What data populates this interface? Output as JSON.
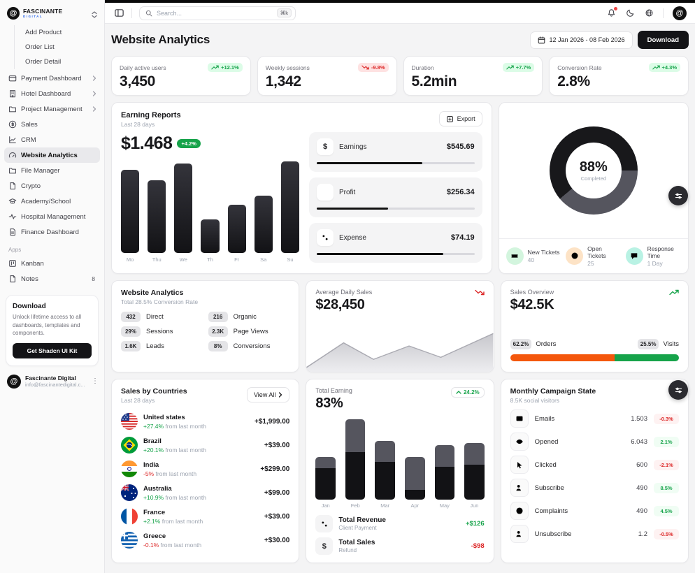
{
  "sidebar": {
    "logo": {
      "brand": "FASCINANTE",
      "sub": "DIGITAL"
    },
    "items": [
      {
        "label": "Add Product",
        "type": "sub"
      },
      {
        "label": "Order List",
        "type": "sub"
      },
      {
        "label": "Order Detail",
        "type": "sub"
      },
      {
        "label": "Payment Dashboard",
        "icon": "wallet",
        "chevron": true
      },
      {
        "label": "Hotel Dashboard",
        "icon": "building",
        "chevron": true
      },
      {
        "label": "Project Management",
        "icon": "folder",
        "chevron": true
      },
      {
        "label": "Sales",
        "icon": "dollar-circle"
      },
      {
        "label": "CRM",
        "icon": "chart-line"
      },
      {
        "label": "Website Analytics",
        "icon": "gauge",
        "active": true
      },
      {
        "label": "File Manager",
        "icon": "folder"
      },
      {
        "label": "Crypto",
        "icon": "file"
      },
      {
        "label": "Academy/School",
        "icon": "cap"
      },
      {
        "label": "Hospital Management",
        "icon": "activity"
      },
      {
        "label": "Finance Dashboard",
        "icon": "file-text"
      }
    ],
    "apps_label": "Apps",
    "apps": [
      {
        "label": "Kanban",
        "icon": "kanban"
      },
      {
        "label": "Notes",
        "icon": "file",
        "badge": "8"
      }
    ],
    "download": {
      "title": "Download",
      "description": "Unlock lifetime access to all dashboards, templates and components.",
      "button": "Get Shadcn UI Kit"
    },
    "account": {
      "name": "Fascinante Digital",
      "email": "info@fascinantedigital.c..."
    }
  },
  "topbar": {
    "search_placeholder": "Search...",
    "shortcut": "⌘k"
  },
  "header": {
    "title": "Website Analytics",
    "date_range": "12 Jan 2026 - 08 Feb 2026",
    "download_label": "Download"
  },
  "kpis": [
    {
      "label": "Daily active users",
      "value": "3,450",
      "change": "+12.1%",
      "dir": "up"
    },
    {
      "label": "Weekly sessions",
      "value": "1,342",
      "change": "-9.8%",
      "dir": "down"
    },
    {
      "label": "Duration",
      "value": "5.2min",
      "change": "+7.7%",
      "dir": "up"
    },
    {
      "label": "Conversion Rate",
      "value": "2.8%",
      "change": "+4.3%",
      "dir": "up"
    }
  ],
  "earning_reports": {
    "title": "Earning Reports",
    "subtitle": "Last 28 days",
    "export_label": "Export",
    "total": "$1.468",
    "change": "+4.2%",
    "chart": {
      "type": "bar",
      "categories": [
        "Mo",
        "Thu",
        "We",
        "Th",
        "Fr",
        "Sa",
        "Su"
      ],
      "values": [
        90,
        79,
        97,
        36,
        52,
        62,
        99
      ]
    },
    "stats": [
      {
        "icon": "dollar",
        "label": "Earnings",
        "value": "$545.69",
        "progress": 67
      },
      {
        "icon": "chart-bars",
        "label": "Profit",
        "value": "$256.34",
        "progress": 45
      },
      {
        "icon": "percent",
        "label": "Expense",
        "value": "$74.19",
        "progress": 80
      }
    ]
  },
  "tickets": {
    "donut": {
      "type": "donut",
      "value": "88%",
      "label": "Completed",
      "dark_color": "#18181b",
      "gray_color": "#55555e",
      "gray_from_deg": 90,
      "gray_sweep_deg": 140
    },
    "items": [
      {
        "icon": "ticket",
        "bg": "#d3f5de",
        "fg": "#166534",
        "label": "New Tickets",
        "value": "40"
      },
      {
        "icon": "clock",
        "bg": "#fde3c6",
        "fg": "#9a3412",
        "label": "Open Tickets",
        "value": "25"
      },
      {
        "icon": "chat",
        "bg": "#b9f2e4",
        "fg": "#0f766e",
        "label": "Response Time",
        "value": "1 Day"
      }
    ]
  },
  "website_analytics_card": {
    "title": "Website Analytics",
    "subtitle": "Total 28.5% Conversion Rate",
    "items": [
      {
        "badge": "432",
        "label": "Direct"
      },
      {
        "badge": "29%",
        "label": "Sessions"
      },
      {
        "badge": "1.6K",
        "label": "Leads"
      },
      {
        "badge": "216",
        "label": "Organic"
      },
      {
        "badge": "2.3K",
        "label": "Page Views"
      },
      {
        "badge": "8%",
        "label": "Conversions"
      }
    ]
  },
  "daily_sales": {
    "label": "Average Daily Sales",
    "value": "$28,450",
    "trend": "down",
    "chart": {
      "type": "area",
      "points_x": [
        0,
        20,
        36,
        55,
        72,
        100
      ],
      "points_y": [
        38,
        14,
        30,
        17,
        28,
        5
      ]
    }
  },
  "sales_overview": {
    "label": "Sales Overview",
    "value": "$42.5K",
    "trend": "up",
    "orders_badge": "62.2%",
    "orders_label": "Orders",
    "visits_badge": "25.5%",
    "visits_label": "Visits",
    "bar": {
      "orange_pct": 62,
      "green_pct": 38,
      "orange_color": "#f4570c",
      "green_color": "#16a34a"
    }
  },
  "countries": {
    "title": "Sales by Countries",
    "subtitle": "Last 28 days",
    "view_all": "View All",
    "suffix": "from last month",
    "rows": [
      {
        "flag": "us",
        "name": "United states",
        "change": "+27.4%",
        "dir": "up",
        "amount": "+$1,999.00"
      },
      {
        "flag": "br",
        "name": "Brazil",
        "change": "+20.1%",
        "dir": "up",
        "amount": "+$39.00"
      },
      {
        "flag": "in",
        "name": "India",
        "change": "-5%",
        "dir": "down",
        "amount": "+$299.00"
      },
      {
        "flag": "au",
        "name": "Australia",
        "change": "+10.9%",
        "dir": "up",
        "amount": "+$99.00"
      },
      {
        "flag": "fr",
        "name": "France",
        "change": "+2.1%",
        "dir": "up",
        "amount": "+$39.00"
      },
      {
        "flag": "gr",
        "name": "Greece",
        "change": "-0.1%",
        "dir": "down",
        "amount": "+$30.00"
      }
    ]
  },
  "total_earning": {
    "label": "Total Earning",
    "value": "83%",
    "change": "24.2%",
    "chart": {
      "type": "stacked-bar",
      "categories": [
        "Jan",
        "Feb",
        "Mar",
        "Apr",
        "May",
        "Jun"
      ],
      "series": [
        {
          "name": "primary",
          "values": [
            33,
            50,
            40,
            10,
            35,
            37
          ]
        },
        {
          "name": "secondary",
          "values": [
            12,
            35,
            22,
            35,
            23,
            23
          ]
        }
      ]
    },
    "rows": [
      {
        "icon": "percent",
        "title": "Total Revenue",
        "subtitle": "Client Payment",
        "amount": "+$126",
        "dir": "up"
      },
      {
        "icon": "dollar",
        "title": "Total Sales",
        "subtitle": "Refund",
        "amount": "-$98",
        "dir": "down"
      }
    ]
  },
  "campaign": {
    "title": "Monthly Campaign State",
    "subtitle": "8.5K social visitors",
    "rows": [
      {
        "icon": "mail",
        "label": "Emails",
        "value": "1.503",
        "change": "-0.3%",
        "dir": "down"
      },
      {
        "icon": "eye",
        "label": "Opened",
        "value": "6.043",
        "change": "2.1%",
        "dir": "up"
      },
      {
        "icon": "cursor",
        "label": "Clicked",
        "value": "600",
        "change": "-2.1%",
        "dir": "down"
      },
      {
        "icon": "user-plus",
        "label": "Subscribe",
        "value": "490",
        "change": "8.5%",
        "dir": "up"
      },
      {
        "icon": "alert",
        "label": "Complaints",
        "value": "490",
        "change": "4.5%",
        "dir": "up"
      },
      {
        "icon": "user-minus",
        "label": "Unsubscribe",
        "value": "1.2",
        "change": "-0.5%",
        "dir": "down"
      }
    ]
  },
  "colors": {
    "accent_green": "#16a34a",
    "accent_red": "#dc2626",
    "bar_dark": "#121215",
    "bar_gray": "#55555e",
    "orange": "#f4570c"
  }
}
